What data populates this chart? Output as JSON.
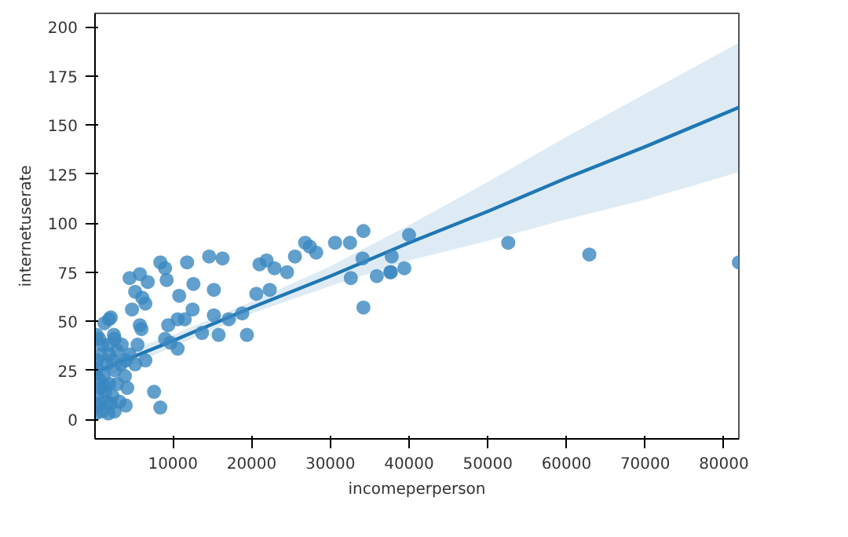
{
  "chart_data": {
    "type": "scatter",
    "xlabel": "incomeperperson",
    "ylabel": "internetuserate",
    "xlim": [
      100,
      81900
    ],
    "ylim": [
      -10,
      207
    ],
    "xticks": [
      10000,
      20000,
      30000,
      40000,
      50000,
      60000,
      70000,
      80000
    ],
    "yticks": [
      0,
      25,
      50,
      75,
      100,
      125,
      150,
      175,
      200
    ],
    "grid": false,
    "marker": "circle",
    "series": [
      {
        "color": "#3a87c0",
        "x": [
          26800,
          27400,
          28200,
          30600,
          32500,
          34200,
          34100,
          32600,
          34200,
          35900,
          37700,
          25500,
          24500,
          22900,
          21900,
          21000,
          20600,
          22300,
          19400,
          18800,
          17100,
          15800,
          15200,
          15200,
          14600,
          16300,
          13700,
          12500,
          11500,
          11800,
          12600,
          10800,
          10600,
          10600,
          9400,
          8400,
          9000,
          9200,
          9000,
          9700,
          7600,
          8400,
          6800,
          5800,
          4500,
          6100,
          5200,
          4800,
          6500,
          5800,
          6000,
          6500,
          4500,
          4200,
          4000,
          3200,
          2600,
          1900,
          1600,
          1300,
          650,
          300,
          1000,
          1800,
          300,
          650,
          800,
          1300,
          2100,
          2500,
          2900,
          3400,
          3900,
          2900,
          2300,
          1600,
          450,
          200,
          2600,
          4000,
          5200,
          5500,
          3500,
          1900,
          1000,
          300,
          1200,
          800,
          1400,
          1900,
          2600,
          1800,
          2300,
          400,
          250,
          650,
          2100,
          40000,
          37800,
          37600,
          39400,
          52600,
          62900,
          81900
        ],
        "values": [
          90,
          88,
          85,
          90,
          90,
          96,
          82,
          72,
          57,
          73,
          75,
          83,
          75,
          77,
          81,
          79,
          64,
          66,
          43,
          54,
          51,
          43,
          53,
          66,
          83,
          82,
          44,
          56,
          51,
          80,
          69,
          63,
          51,
          36,
          48,
          80,
          77,
          71,
          41,
          39,
          14,
          6,
          70,
          74,
          72,
          62,
          65,
          56,
          59,
          48,
          46,
          30,
          33,
          16,
          7,
          9,
          41,
          51,
          28,
          17,
          41,
          7,
          4,
          3,
          26,
          20,
          33,
          49,
          52,
          43,
          35,
          28,
          22,
          18,
          12,
          9,
          13,
          3,
          4,
          30,
          28,
          38,
          38,
          33,
          38,
          43,
          22,
          16,
          14,
          18,
          25,
          38,
          30,
          30,
          23,
          8,
          8,
          94,
          83,
          75,
          77,
          90,
          84,
          80
        ]
      },
      {
        "type": "line",
        "color": "#1f77b4",
        "marker": "none",
        "x": [
          100,
          10000,
          20000,
          30000,
          40000,
          50000,
          60000,
          70000,
          81900
        ],
        "values": [
          24,
          40,
          57,
          73,
          90,
          106,
          123,
          139,
          159
        ],
        "lower": [
          19,
          37,
          54,
          68,
          81,
          91,
          102,
          112,
          126
        ],
        "upper": [
          29,
          43,
          60,
          78,
          99,
          121,
          144,
          166,
          192
        ]
      }
    ]
  }
}
